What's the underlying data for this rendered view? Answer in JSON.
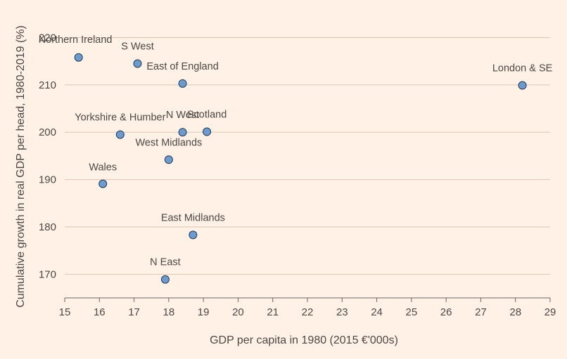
{
  "chart_data": {
    "type": "scatter",
    "xlabel": "GDP per capita in 1980 (2015 €'000s)",
    "ylabel": "Cumulative growth in real GDP per head, 1980-2019 (%)",
    "xlim": [
      15,
      29
    ],
    "ylim": [
      165,
      222
    ],
    "x_ticks": [
      15,
      16,
      17,
      18,
      19,
      20,
      21,
      22,
      23,
      24,
      25,
      26,
      27,
      28,
      29
    ],
    "y_ticks": [
      170,
      180,
      190,
      200,
      210,
      220
    ],
    "y_tick_labels": [
      "170",
      "180",
      "190",
      "200",
      "210",
      "220"
    ],
    "grid": "horizontal",
    "colors": {
      "point": "#6f9bcc",
      "point_stroke": "#1f3b5b",
      "grid": "#d9c7b6",
      "axis": "#6b6560",
      "background": "#fff1e5"
    },
    "points": [
      {
        "label": "Northern Ireland",
        "x": 15.4,
        "y": 215.8
      },
      {
        "label": "S West",
        "x": 17.1,
        "y": 214.5
      },
      {
        "label": "East of England",
        "x": 18.4,
        "y": 210.3
      },
      {
        "label": "London & SE",
        "x": 28.2,
        "y": 209.9
      },
      {
        "label": "Yorkshire & Humber",
        "x": 16.6,
        "y": 199.5
      },
      {
        "label": "N West",
        "x": 18.4,
        "y": 200.0
      },
      {
        "label": "Scotland",
        "x": 19.1,
        "y": 200.1
      },
      {
        "label": "West Midlands",
        "x": 18.0,
        "y": 194.2
      },
      {
        "label": "Wales",
        "x": 16.1,
        "y": 189.1
      },
      {
        "label": "East Midlands",
        "x": 18.7,
        "y": 178.3
      },
      {
        "label": "N East",
        "x": 17.9,
        "y": 168.9
      }
    ]
  }
}
